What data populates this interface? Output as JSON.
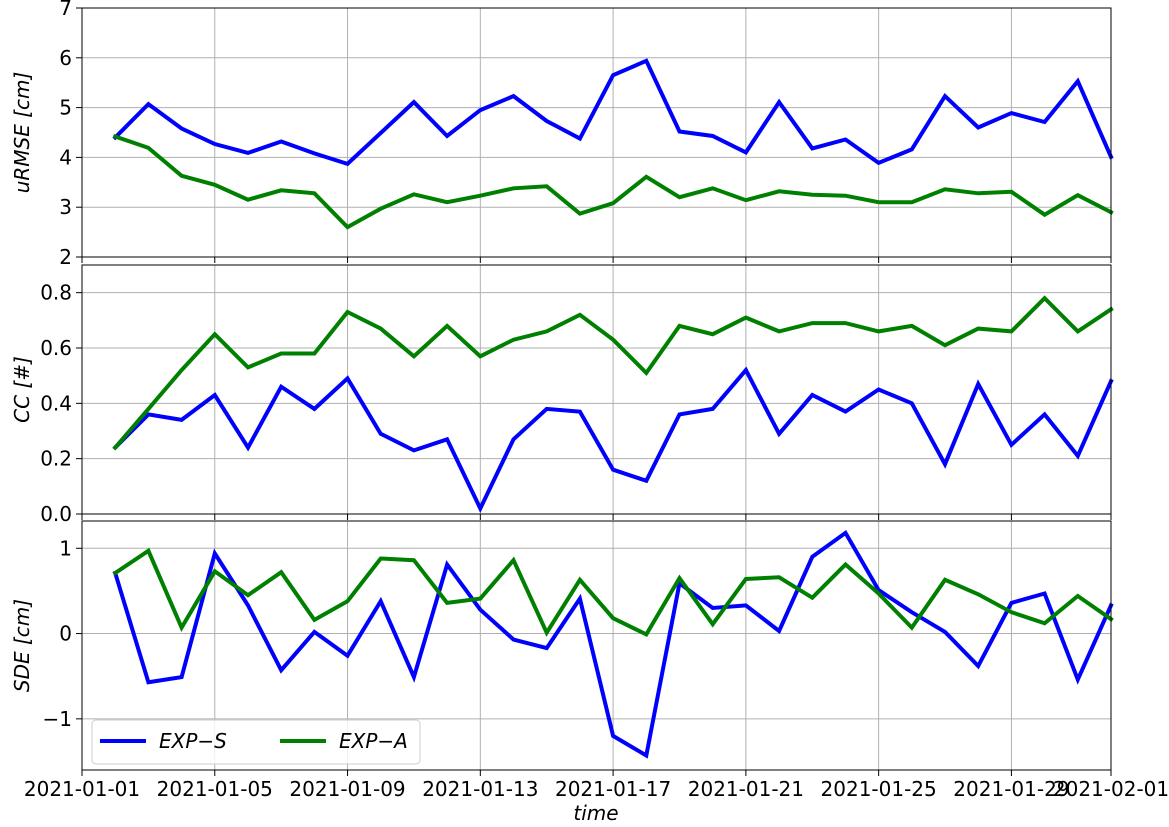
{
  "chart_data": {
    "type": "line",
    "xlabel": "time",
    "x_ticks": [
      "2021-01-01",
      "2021-01-05",
      "2021-01-09",
      "2021-01-13",
      "2021-01-17",
      "2021-01-21",
      "2021-01-25",
      "2021-01-29",
      "2021-02-01"
    ],
    "x_range": [
      "2021-01-01",
      "2021-02-01"
    ],
    "dates": [
      "2021-01-02",
      "2021-01-03",
      "2021-01-04",
      "2021-01-05",
      "2021-01-06",
      "2021-01-07",
      "2021-01-08",
      "2021-01-09",
      "2021-01-10",
      "2021-01-11",
      "2021-01-12",
      "2021-01-13",
      "2021-01-14",
      "2021-01-15",
      "2021-01-16",
      "2021-01-17",
      "2021-01-18",
      "2021-01-19",
      "2021-01-20",
      "2021-01-21",
      "2021-01-22",
      "2021-01-23",
      "2021-01-24",
      "2021-01-25",
      "2021-01-26",
      "2021-01-27",
      "2021-01-28",
      "2021-01-29",
      "2021-01-30",
      "2021-01-31",
      "2021-02-01"
    ],
    "grid": true,
    "legend": {
      "location": "lower-left of bottom panel",
      "entries": [
        "EXP−S",
        "EXP−A"
      ]
    },
    "panels": [
      {
        "ylabel": "uRMSE [cm]",
        "ylim": [
          2,
          7
        ],
        "yticks": [
          2,
          3,
          4,
          5,
          6,
          7
        ],
        "ytick_labels": [
          "2",
          "3",
          "4",
          "5",
          "6",
          "7"
        ],
        "series": [
          {
            "name": "EXP−S",
            "color": "#0000ff",
            "values": [
              4.4,
              5.07,
              4.58,
              4.27,
              4.09,
              4.32,
              4.08,
              3.87,
              4.49,
              5.11,
              4.43,
              4.95,
              5.23,
              4.73,
              4.38,
              5.65,
              5.94,
              4.52,
              4.43,
              4.1,
              5.11,
              4.18,
              4.36,
              3.89,
              4.16,
              5.23,
              4.6,
              4.89,
              4.71,
              5.53,
              4.01
            ]
          },
          {
            "name": "EXP−A",
            "color": "#008000",
            "values": [
              4.42,
              4.19,
              3.63,
              3.45,
              3.15,
              3.34,
              3.28,
              2.6,
              2.97,
              3.26,
              3.1,
              3.23,
              3.38,
              3.42,
              2.87,
              3.08,
              3.61,
              3.2,
              3.38,
              3.14,
              3.32,
              3.25,
              3.23,
              3.1,
              3.1,
              3.36,
              3.28,
              3.31,
              2.85,
              3.24,
              2.9
            ]
          }
        ]
      },
      {
        "ylabel": "CC [#]",
        "ylim": [
          0.0,
          0.9
        ],
        "yticks": [
          0.0,
          0.2,
          0.4,
          0.6,
          0.8
        ],
        "ytick_labels": [
          "0.0",
          "0.2",
          "0.4",
          "0.6",
          "0.8"
        ],
        "series": [
          {
            "name": "EXP−S",
            "color": "#0000ff",
            "values": [
              0.24,
              0.36,
              0.34,
              0.43,
              0.24,
              0.46,
              0.38,
              0.49,
              0.29,
              0.23,
              0.27,
              0.02,
              0.27,
              0.38,
              0.37,
              0.16,
              0.12,
              0.36,
              0.38,
              0.52,
              0.29,
              0.43,
              0.37,
              0.45,
              0.4,
              0.18,
              0.47,
              0.25,
              0.36,
              0.21,
              0.48
            ]
          },
          {
            "name": "EXP−A",
            "color": "#008000",
            "values": [
              0.24,
              0.38,
              0.52,
              0.65,
              0.53,
              0.58,
              0.58,
              0.73,
              0.67,
              0.57,
              0.68,
              0.57,
              0.63,
              0.66,
              0.72,
              0.63,
              0.51,
              0.68,
              0.65,
              0.71,
              0.66,
              0.69,
              0.69,
              0.66,
              0.68,
              0.61,
              0.67,
              0.66,
              0.78,
              0.66,
              0.74
            ]
          }
        ]
      },
      {
        "ylabel": "SDE [cm]",
        "ylim": [
          -1.6,
          1.32
        ],
        "yticks": [
          -1,
          0,
          1
        ],
        "ytick_labels": [
          "−1",
          "0",
          "1"
        ],
        "series": [
          {
            "name": "EXP−S",
            "color": "#0000ff",
            "values": [
              0.71,
              -0.57,
              -0.51,
              0.94,
              0.33,
              -0.43,
              0.02,
              -0.26,
              0.38,
              -0.51,
              0.81,
              0.28,
              -0.07,
              -0.17,
              0.41,
              -1.2,
              -1.43,
              0.59,
              0.3,
              0.33,
              0.03,
              0.9,
              1.18,
              0.51,
              0.25,
              0.02,
              -0.38,
              0.36,
              0.47,
              -0.54,
              0.33
            ]
          },
          {
            "name": "EXP−A",
            "color": "#008000",
            "values": [
              0.71,
              0.97,
              0.07,
              0.73,
              0.45,
              0.72,
              0.16,
              0.38,
              0.88,
              0.86,
              0.36,
              0.41,
              0.86,
              0.01,
              0.63,
              0.18,
              -0.01,
              0.65,
              0.11,
              0.64,
              0.66,
              0.42,
              0.81,
              0.47,
              0.07,
              0.63,
              0.46,
              0.25,
              0.12,
              0.44,
              0.17
            ]
          }
        ]
      }
    ]
  }
}
